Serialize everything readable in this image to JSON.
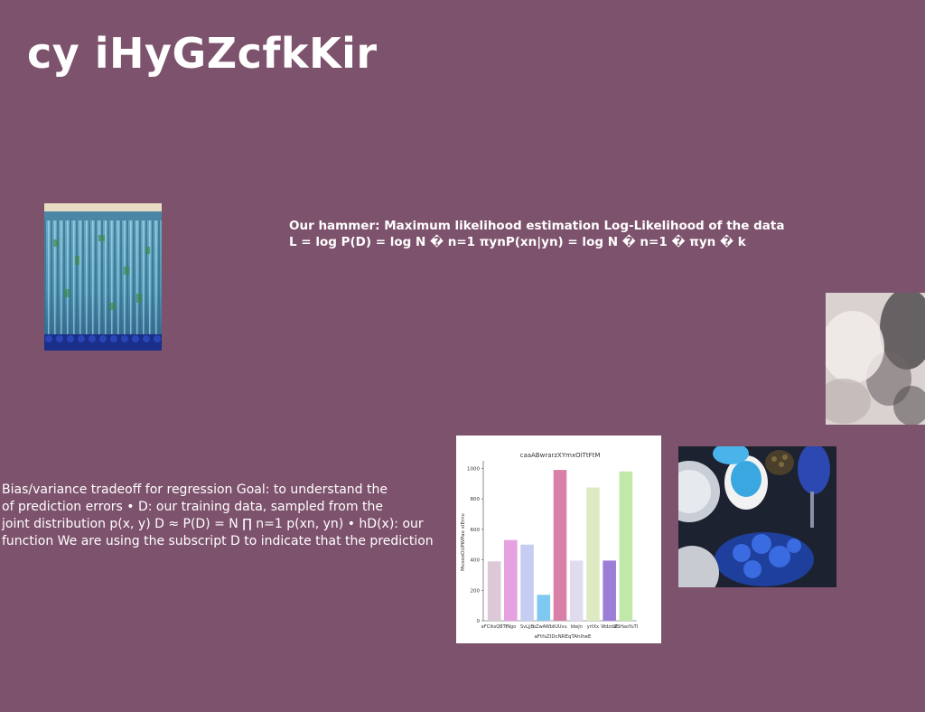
{
  "slide": {
    "title": "cy iHyGZcfkKir",
    "bold_text": "Our hammer: Maximum likelihood estimation Log-Likelihood of the data L = log P(D) = log N � n=1 πynP(xn|yn) = log N � n=1 � πyn � k",
    "body_text_lines": [
      "Bias/variance tradeoff for regression Goal: to understand the",
      "of prediction errors • D: our training data, sampled from the",
      "joint distribution p(x, y) D ≈ P(D) = N ∏ n=1 p(xn, yn) • hD(x): our",
      "function We are using the subscript D to indicate that the prediction"
    ]
  },
  "images": {
    "roof_tiles": "photo of blue-green glazed roof tiles",
    "cloudy_sky": "photo of white and grey clouds",
    "blue_food": "photo of blue food bowls and glassware"
  },
  "chart_data": {
    "type": "bar",
    "title": "caaABwrarzXYmxOiTtFtM",
    "xlabel": "aFtfsZIDcNREqTAhlheE",
    "ylabel": "MvxeoOUPWPao xlErnv",
    "categories": [
      "eFCIksQBTf",
      "tNgo",
      "SvLjjB",
      "oZwAWbI",
      "tUUvu",
      "IdwJn",
      "yrtXx",
      "Wdzdat",
      "ZSHaoYuTI"
    ],
    "values": [
      390,
      530,
      500,
      170,
      990,
      395,
      875,
      395,
      980
    ],
    "colors": [
      "#dcc8d6",
      "#e5a1e0",
      "#c7cdf2",
      "#7ec8f2",
      "#d980a8",
      "#e0dcf0",
      "#deebc2",
      "#9b7fd6",
      "#c0e8a8"
    ],
    "ylim": [
      0,
      1050
    ],
    "yticks": [
      0,
      200,
      400,
      600,
      800,
      1000
    ],
    "grid": false,
    "legend": "none"
  }
}
